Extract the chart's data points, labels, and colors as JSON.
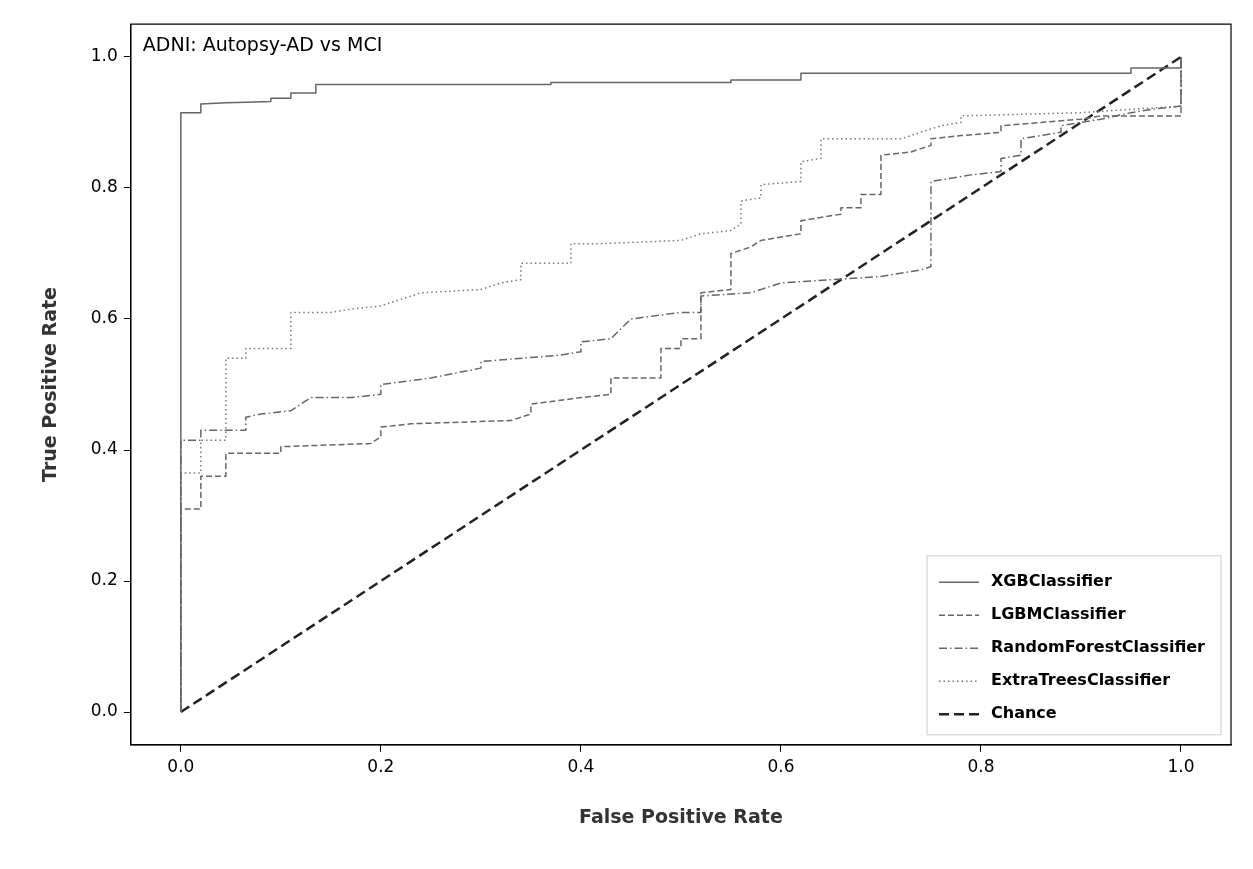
{
  "chart_data": {
    "type": "line",
    "title": "ADNI: Autopsy-AD vs MCI",
    "xlabel": "False Positive Rate",
    "ylabel": "True Positive Rate",
    "xlim": [
      -0.05,
      1.05
    ],
    "ylim": [
      -0.05,
      1.05
    ],
    "xticks": [
      {
        "value": 0,
        "label": "0.0"
      },
      {
        "value": 0.2,
        "label": "0.2"
      },
      {
        "value": 0.4,
        "label": "0.4"
      },
      {
        "value": 0.6,
        "label": "0.6"
      },
      {
        "value": 0.8,
        "label": "0.8"
      },
      {
        "value": 1,
        "label": "1.0"
      }
    ],
    "yticks": [
      {
        "value": 0,
        "label": "0.0"
      },
      {
        "value": 0.2,
        "label": "0.2"
      },
      {
        "value": 0.4,
        "label": "0.4"
      },
      {
        "value": 0.6,
        "label": "0.6"
      },
      {
        "value": 0.8,
        "label": "0.8"
      },
      {
        "value": 1,
        "label": "1.0"
      }
    ],
    "grid": false,
    "legend": "bottom right",
    "marker": "none",
    "series": [
      {
        "name": "XGBClassifier",
        "color": "#666666",
        "line_style": "solid",
        "x": [
          0,
          0,
          0.02,
          0.02,
          0.045,
          0.09,
          0.09,
          0.11,
          0.11,
          0.135,
          0.135,
          0.37,
          0.37,
          0.55,
          0.55,
          0.62,
          0.62,
          0.95,
          0.95,
          1,
          1
        ],
        "values": [
          0,
          0.915,
          0.915,
          0.928,
          0.93,
          0.932,
          0.937,
          0.937,
          0.945,
          0.945,
          0.958,
          0.958,
          0.961,
          0.961,
          0.965,
          0.965,
          0.975,
          0.975,
          0.983,
          0.983,
          1
        ]
      },
      {
        "name": "LGBMClassifier",
        "color": "#666666",
        "line_style": "dashed",
        "x": [
          0,
          0,
          0.02,
          0.02,
          0.045,
          0.045,
          0.1,
          0.1,
          0.19,
          0.2,
          0.2,
          0.23,
          0.33,
          0.35,
          0.35,
          0.4,
          0.43,
          0.43,
          0.48,
          0.48,
          0.5,
          0.5,
          0.52,
          0.52,
          0.55,
          0.55,
          0.57,
          0.58,
          0.6,
          0.62,
          0.62,
          0.66,
          0.66,
          0.68,
          0.68,
          0.7,
          0.7,
          0.73,
          0.75,
          0.75,
          0.78,
          0.82,
          0.82,
          0.86,
          0.9,
          0.92,
          1,
          1
        ],
        "values": [
          0,
          0.31,
          0.31,
          0.36,
          0.36,
          0.395,
          0.395,
          0.405,
          0.41,
          0.42,
          0.435,
          0.44,
          0.445,
          0.455,
          0.47,
          0.48,
          0.485,
          0.51,
          0.51,
          0.555,
          0.555,
          0.57,
          0.57,
          0.64,
          0.645,
          0.7,
          0.71,
          0.72,
          0.725,
          0.73,
          0.75,
          0.76,
          0.77,
          0.77,
          0.79,
          0.79,
          0.85,
          0.855,
          0.865,
          0.875,
          0.88,
          0.885,
          0.895,
          0.9,
          0.905,
          0.91,
          0.91,
          1
        ]
      },
      {
        "name": "RandomForestClassifier",
        "color": "#666666",
        "line_style": "dashdot",
        "x": [
          0,
          0,
          0.02,
          0.02,
          0.065,
          0.065,
          0.08,
          0.11,
          0.13,
          0.17,
          0.2,
          0.2,
          0.25,
          0.3,
          0.3,
          0.38,
          0.4,
          0.4,
          0.43,
          0.45,
          0.5,
          0.52,
          0.52,
          0.57,
          0.6,
          0.65,
          0.7,
          0.74,
          0.75,
          0.75,
          0.77,
          0.79,
          0.82,
          0.82,
          0.84,
          0.84,
          0.88,
          0.88,
          0.92,
          0.95,
          0.97,
          1,
          1,
          1
        ],
        "values": [
          0,
          0.415,
          0.415,
          0.43,
          0.43,
          0.45,
          0.455,
          0.46,
          0.48,
          0.48,
          0.485,
          0.5,
          0.51,
          0.525,
          0.535,
          0.545,
          0.55,
          0.565,
          0.57,
          0.6,
          0.61,
          0.61,
          0.635,
          0.64,
          0.655,
          0.66,
          0.665,
          0.675,
          0.68,
          0.81,
          0.815,
          0.82,
          0.825,
          0.845,
          0.85,
          0.875,
          0.885,
          0.895,
          0.905,
          0.915,
          0.92,
          0.925,
          0.945,
          1
        ]
      },
      {
        "name": "ExtraTreesClassifier",
        "color": "#777777",
        "line_style": "dotted",
        "x": [
          0,
          0,
          0.02,
          0.02,
          0.045,
          0.045,
          0.065,
          0.065,
          0.11,
          0.11,
          0.15,
          0.17,
          0.2,
          0.22,
          0.24,
          0.3,
          0.32,
          0.34,
          0.34,
          0.39,
          0.39,
          0.42,
          0.5,
          0.52,
          0.55,
          0.56,
          0.56,
          0.58,
          0.58,
          0.62,
          0.62,
          0.64,
          0.64,
          0.72,
          0.74,
          0.76,
          0.78,
          0.78,
          0.9,
          1,
          1
        ],
        "values": [
          0,
          0.365,
          0.365,
          0.415,
          0.415,
          0.54,
          0.54,
          0.555,
          0.555,
          0.61,
          0.61,
          0.615,
          0.62,
          0.63,
          0.64,
          0.645,
          0.655,
          0.66,
          0.685,
          0.685,
          0.715,
          0.715,
          0.72,
          0.73,
          0.735,
          0.745,
          0.78,
          0.785,
          0.805,
          0.81,
          0.84,
          0.845,
          0.875,
          0.875,
          0.885,
          0.895,
          0.9,
          0.91,
          0.915,
          0.925,
          1
        ]
      },
      {
        "name": "Chance",
        "color": "#222222",
        "line_style": "dashed",
        "x": [
          0,
          1
        ],
        "values": [
          0,
          1
        ]
      }
    ]
  }
}
